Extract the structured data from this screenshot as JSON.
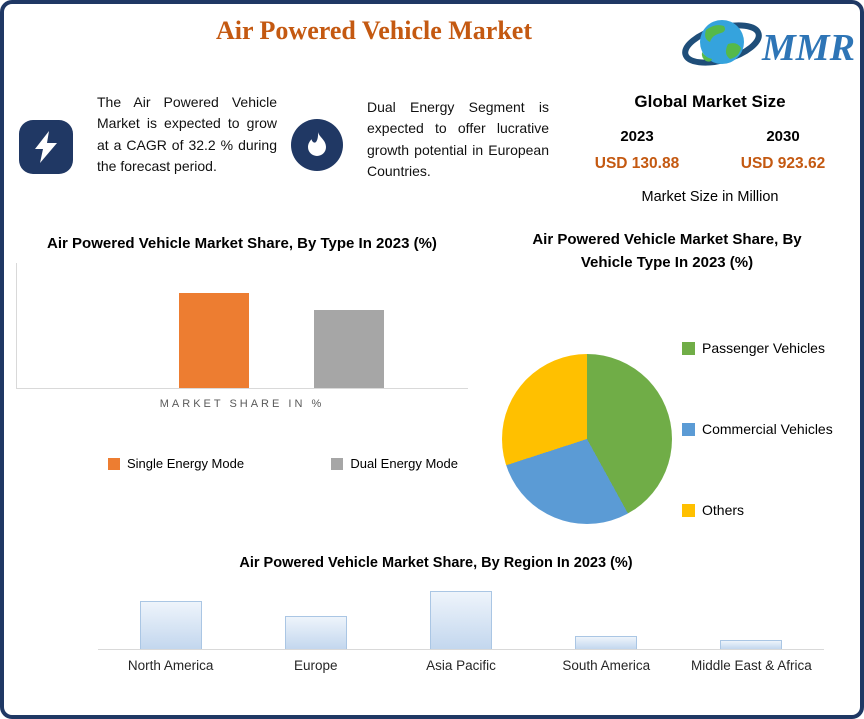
{
  "page": {
    "title": "Air Powered Vehicle Market"
  },
  "logo": {
    "text": "MMR"
  },
  "colors": {
    "frame_navy": "#1F3864",
    "icon_navy": "#203864",
    "accent_orange": "#C45911"
  },
  "highlights": [
    {
      "icon": "lightning-icon",
      "text": "The Air Powered Vehicle Market is expected to grow at a CAGR of 32.2 % during the forecast period."
    },
    {
      "icon": "flame-icon",
      "text": "Dual Energy Segment is expected to offer lucrative growth potential in European Countries."
    }
  ],
  "market_size": {
    "heading": "Global Market Size",
    "years": [
      "2023",
      "2030"
    ],
    "values": [
      "USD 130.88",
      "USD 923.62"
    ],
    "note": "Market Size in Million"
  },
  "chart_data": [
    {
      "type": "bar",
      "title": "Air Powered Vehicle Market Share, By Type In 2023 (%)",
      "categories": [
        "Single Energy Mode",
        "Dual Energy Mode"
      ],
      "values": [
        55,
        45
      ],
      "colors": [
        "#ED7D31",
        "#A6A6A6"
      ],
      "xlabel": "MARKET SHARE IN %",
      "ylim": [
        0,
        60
      ],
      "legend_position": "bottom",
      "grid": false
    },
    {
      "type": "pie",
      "title": "Air Powered Vehicle Market Share, By Vehicle Type In 2023 (%)",
      "categories": [
        "Passenger Vehicles",
        "Commercial Vehicles",
        "Others"
      ],
      "values": [
        42,
        28,
        30
      ],
      "colors": [
        "#70AD47",
        "#5B9BD5",
        "#FFC000"
      ],
      "legend_position": "right"
    },
    {
      "type": "bar",
      "title": "Air Powered Vehicle Market Share, By Region In 2023 (%)",
      "categories": [
        "North America",
        "Europe",
        "Asia Pacific",
        "South America",
        "Middle East & Africa"
      ],
      "values": [
        25,
        17,
        30,
        7,
        5
      ],
      "color": "#C3D7EE",
      "ylim": [
        0,
        35
      ],
      "grid": false
    }
  ]
}
